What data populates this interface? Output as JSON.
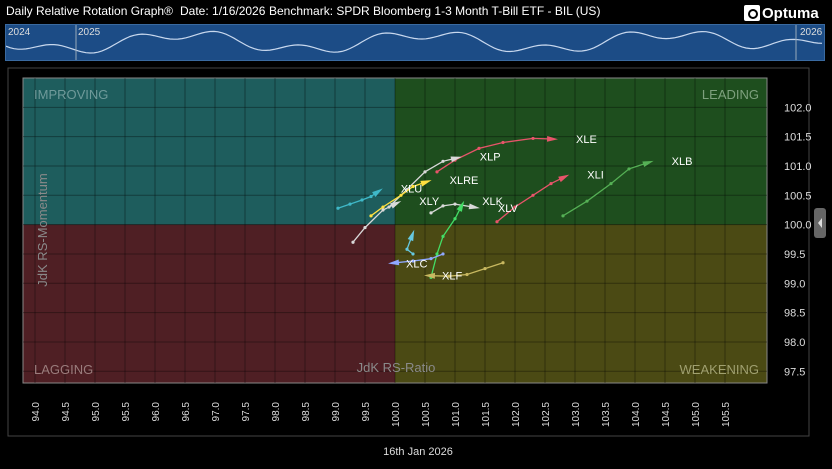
{
  "header": {
    "title": "Daily Relative Rotation Graph®",
    "date": "Date: 1/16/2026",
    "benchmark": "Benchmark: SPDR Bloomberg 1-3 Month T-Bill ETF - BIL (US)",
    "logo": "Optuma"
  },
  "overview": {
    "years": [
      "2024",
      "2025",
      "2026"
    ]
  },
  "chart_data": {
    "type": "scatter",
    "subtype": "relative-rotation-graph",
    "xlabel": "JdK RS-Ratio",
    "ylabel": "JdK RS-Momentum",
    "xlim": [
      93.8,
      106.2
    ],
    "ylim": [
      97.3,
      102.5
    ],
    "center": [
      100.0,
      100.0
    ],
    "date_label": "16th Jan 2026",
    "x_ticks": [
      "94.0",
      "94.5",
      "95.0",
      "95.5",
      "96.0",
      "96.5",
      "97.0",
      "97.5",
      "98.0",
      "98.5",
      "99.0",
      "99.5",
      "100.0",
      "100.5",
      "101.0",
      "101.5",
      "102.0",
      "102.5",
      "103.0",
      "103.5",
      "104.0",
      "104.5",
      "105.0",
      "105.5"
    ],
    "y_ticks": [
      "97.5",
      "98.0",
      "98.5",
      "99.0",
      "99.5",
      "100.0",
      "100.5",
      "101.0",
      "101.5",
      "102.0"
    ],
    "quadrants": {
      "improving": {
        "label": "IMPROVING",
        "color": "#1e5d5d"
      },
      "leading": {
        "label": "LEADING",
        "color": "#1e4e1e"
      },
      "lagging": {
        "label": "LAGGING",
        "color": "#4f1f24"
      },
      "weakening": {
        "label": "WEAKENING",
        "color": "#4b4a14"
      }
    },
    "series": [
      {
        "name": "XLE",
        "color": "#e8546a",
        "tail": [
          [
            100.7,
            100.9
          ],
          [
            101.0,
            101.1
          ],
          [
            101.4,
            101.3
          ],
          [
            101.8,
            101.4
          ],
          [
            102.3,
            101.47
          ],
          [
            102.6,
            101.46
          ]
        ]
      },
      {
        "name": "XLP",
        "color": "#d9d9d9",
        "tail": [
          [
            99.9,
            100.3
          ],
          [
            100.2,
            100.6
          ],
          [
            100.5,
            100.9
          ],
          [
            100.8,
            101.08
          ],
          [
            101.0,
            101.13
          ]
        ]
      },
      {
        "name": "XLB",
        "color": "#55b055",
        "tail": [
          [
            102.8,
            100.15
          ],
          [
            103.2,
            100.4
          ],
          [
            103.6,
            100.7
          ],
          [
            103.9,
            100.95
          ],
          [
            104.2,
            101.05
          ]
        ]
      },
      {
        "name": "XLI",
        "color": "#e8546a",
        "tail": [
          [
            101.7,
            100.05
          ],
          [
            102.0,
            100.3
          ],
          [
            102.3,
            100.5
          ],
          [
            102.6,
            100.7
          ],
          [
            102.8,
            100.8
          ]
        ]
      },
      {
        "name": "XLRE",
        "color": "#ffe040",
        "tail": [
          [
            99.6,
            100.15
          ],
          [
            99.8,
            100.3
          ],
          [
            100.1,
            100.5
          ],
          [
            100.3,
            100.65
          ],
          [
            100.5,
            100.72
          ]
        ]
      },
      {
        "name": "XLU",
        "color": "#3fb8c8",
        "tail": [
          [
            99.05,
            100.28
          ],
          [
            99.25,
            100.35
          ],
          [
            99.45,
            100.42
          ],
          [
            99.6,
            100.48
          ],
          [
            99.7,
            100.55
          ]
        ]
      },
      {
        "name": "XLY",
        "color": "#d9d9d9",
        "tail": [
          [
            99.3,
            99.7
          ],
          [
            99.5,
            99.95
          ],
          [
            99.8,
            100.25
          ],
          [
            100.0,
            100.35
          ]
        ]
      },
      {
        "name": "XLV",
        "color": "#d9d9d9",
        "tail": [
          [
            100.6,
            100.2
          ],
          [
            100.8,
            100.32
          ],
          [
            101.0,
            100.35
          ],
          [
            101.3,
            100.3
          ]
        ]
      },
      {
        "name": "XLK",
        "color": "#44dd66",
        "tail": [
          [
            100.6,
            99.1
          ],
          [
            100.7,
            99.5
          ],
          [
            100.8,
            99.8
          ],
          [
            101.0,
            100.1
          ],
          [
            101.1,
            100.3
          ]
        ]
      },
      {
        "name": "XLC",
        "color": "#8fa8ff",
        "tail": [
          [
            100.8,
            99.5
          ],
          [
            100.6,
            99.42
          ],
          [
            100.3,
            99.38
          ],
          [
            100.0,
            99.35
          ]
        ]
      },
      {
        "name": "XLF",
        "color": "#c8b860",
        "tail": [
          [
            101.8,
            99.35
          ],
          [
            101.5,
            99.25
          ],
          [
            101.2,
            99.15
          ],
          [
            100.9,
            99.12
          ],
          [
            100.6,
            99.13
          ]
        ]
      },
      {
        "name": "",
        "color": "#66c8e0",
        "tail": [
          [
            100.3,
            99.5
          ],
          [
            100.2,
            99.58
          ],
          [
            100.28,
            99.8
          ]
        ]
      }
    ]
  }
}
